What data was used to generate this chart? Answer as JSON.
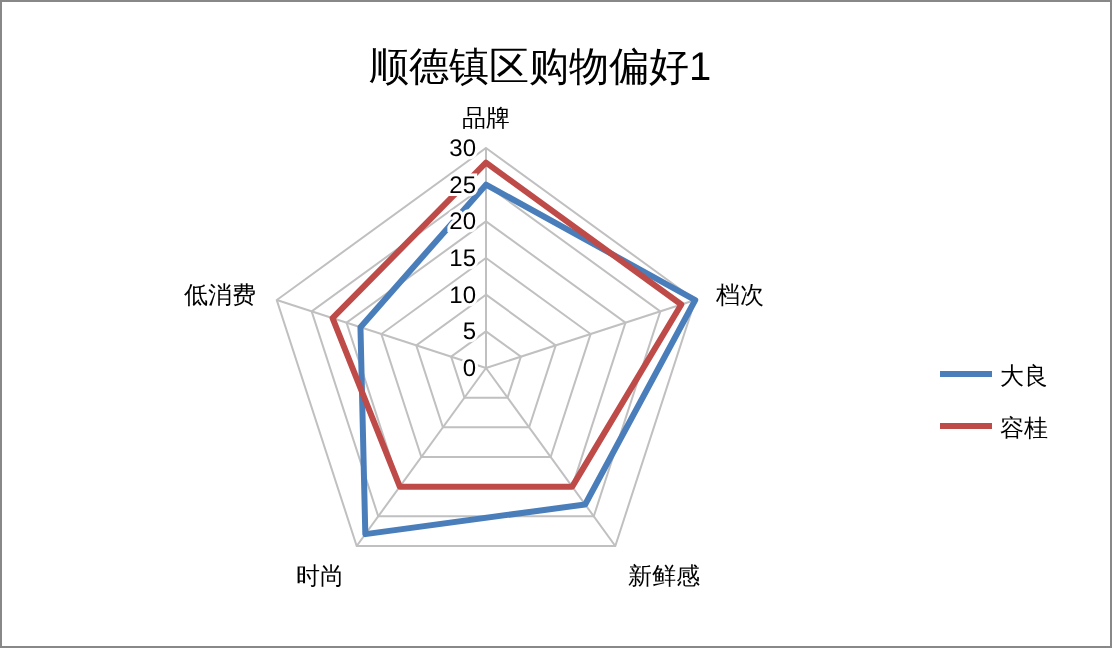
{
  "chart_data": {
    "type": "radar",
    "title": "顺德镇区购物偏好1",
    "categories": [
      "品牌",
      "档次",
      "新鲜感",
      "时尚",
      "低消费"
    ],
    "ylim": [
      0,
      30
    ],
    "yticks": [
      0,
      5,
      10,
      15,
      20,
      25,
      30
    ],
    "legend": "right",
    "grid": true,
    "series": [
      {
        "name": "大良",
        "color": "#4a7ebb",
        "values": [
          25,
          30,
          23,
          28,
          18
        ]
      },
      {
        "name": "容桂",
        "color": "#be4b48",
        "values": [
          28,
          28,
          20,
          20,
          22
        ]
      }
    ]
  }
}
